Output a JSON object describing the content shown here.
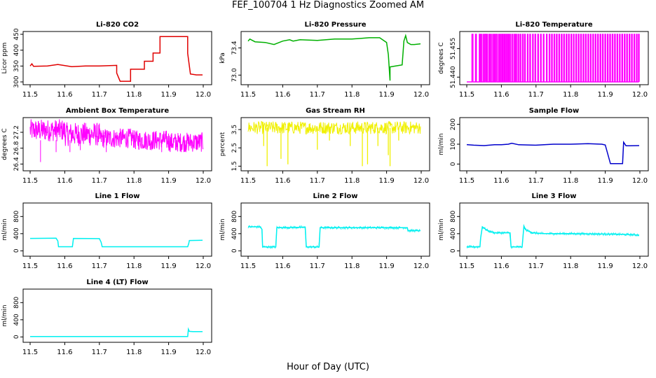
{
  "figure": {
    "title": "FEF_100704  1 Hz Diagnostics Zoomed AM",
    "xlabel": "Hour of Day (UTC)"
  },
  "chart_data": [
    {
      "type": "line",
      "title": "Li-820 CO2",
      "ylabel": "Licor ppm",
      "color": "#e00000",
      "xlim": [
        11.5,
        12.0
      ],
      "ylim": [
        300,
        450
      ],
      "xticks": [
        "11.5",
        "11.6",
        "11.7",
        "11.8",
        "11.9",
        "12.0"
      ],
      "yticks": [
        300,
        350,
        400,
        450
      ],
      "x": [
        11.5,
        11.505,
        11.51,
        11.55,
        11.58,
        11.62,
        11.66,
        11.7,
        11.75,
        11.75,
        11.76,
        11.79,
        11.79,
        11.83,
        11.83,
        11.855,
        11.855,
        11.875,
        11.875,
        11.955,
        11.955,
        11.963,
        11.98,
        11.998
      ],
      "y": [
        350,
        357,
        349,
        350,
        355,
        348,
        350,
        350,
        352,
        328,
        302,
        302,
        340,
        340,
        365,
        365,
        391,
        391,
        443,
        443,
        390,
        325,
        322,
        322
      ]
    },
    {
      "type": "line",
      "title": "Li-820 Pressure",
      "ylabel": "kPa",
      "color": "#00b000",
      "xlim": [
        11.5,
        12.0
      ],
      "ylim": [
        72.9,
        73.6
      ],
      "xticks": [
        "11.5",
        "11.6",
        "11.7",
        "11.8",
        "11.9",
        "12.0"
      ],
      "yticks": [
        "73.0",
        "73.4"
      ],
      "x": [
        11.5,
        11.505,
        11.52,
        11.55,
        11.575,
        11.6,
        11.62,
        11.63,
        11.65,
        11.7,
        11.75,
        11.8,
        11.85,
        11.88,
        11.9,
        11.905,
        11.91,
        11.91,
        11.92,
        11.945,
        11.95,
        11.955,
        11.96,
        11.97,
        11.98,
        11.998
      ],
      "y": [
        73.5,
        73.53,
        73.49,
        73.48,
        73.45,
        73.5,
        73.52,
        73.5,
        73.52,
        73.51,
        73.53,
        73.53,
        73.55,
        73.55,
        73.48,
        73.3,
        72.92,
        73.12,
        73.13,
        73.15,
        73.5,
        73.58,
        73.48,
        73.45,
        73.45,
        73.46
      ]
    },
    {
      "type": "line",
      "title": "Li-820 Temperature",
      "ylabel": "degrees C",
      "color": "#ff00ff",
      "xlim": [
        11.5,
        12.0
      ],
      "ylim": [
        51.4375,
        51.4625
      ],
      "xticks": [
        "11.5",
        "11.6",
        "11.7",
        "11.8",
        "11.9",
        "12.0"
      ],
      "yticks": [
        "51.440",
        "51.455"
      ],
      "low": 51.4375,
      "high": 51.4625,
      "toggle_x": [
        11.515,
        11.518,
        11.525,
        11.528,
        11.536,
        11.538,
        11.54,
        11.543,
        11.547,
        11.549,
        11.552,
        11.555,
        11.557,
        11.56,
        11.564,
        11.566,
        11.569,
        11.571,
        11.575,
        11.577,
        11.58,
        11.582,
        11.585,
        11.588,
        11.592,
        11.594,
        11.597,
        11.599,
        11.602,
        11.604,
        11.607,
        11.61,
        11.613,
        11.615,
        11.618,
        11.62,
        11.623,
        11.626,
        11.63,
        11.632,
        11.636,
        11.638,
        11.641,
        11.644,
        11.648,
        11.65,
        11.654,
        11.656,
        11.661,
        11.663,
        11.667,
        11.669,
        11.675,
        11.677,
        11.682,
        11.684,
        11.69,
        11.692,
        11.697,
        11.699,
        11.705,
        11.707,
        11.713,
        11.715,
        11.721,
        11.723,
        11.73,
        11.732,
        11.738,
        11.74,
        11.745,
        11.747,
        11.752,
        11.754,
        11.759,
        11.761,
        11.766,
        11.768,
        11.773,
        11.775,
        11.78,
        11.782,
        11.787,
        11.789,
        11.794,
        11.796,
        11.801,
        11.803,
        11.808,
        11.81,
        11.815,
        11.817,
        11.822,
        11.824,
        11.829,
        11.831,
        11.836,
        11.838,
        11.843,
        11.845,
        11.85,
        11.852,
        11.857,
        11.859,
        11.864,
        11.866,
        11.871,
        11.873,
        11.878,
        11.88,
        11.885,
        11.887,
        11.892,
        11.894,
        11.899,
        11.901,
        11.906,
        11.908,
        11.913,
        11.915,
        11.92,
        11.922,
        11.927,
        11.929,
        11.934,
        11.936,
        11.941,
        11.943,
        11.948,
        11.95,
        11.955,
        11.957,
        11.962,
        11.964,
        11.969,
        11.971,
        11.976,
        11.978,
        11.983,
        11.985,
        11.99,
        11.992,
        11.996,
        11.998
      ]
    },
    {
      "type": "line",
      "title": "Ambient Box Temperature",
      "ylabel": "degrees C",
      "color": "#ff00ff",
      "xlim": [
        11.5,
        12.0
      ],
      "ylim": [
        26.3,
        27.5
      ],
      "xticks": [
        "11.5",
        "11.6",
        "11.7",
        "11.8",
        "11.9",
        "12.0"
      ],
      "yticks": [
        "26.4",
        "26.8",
        "27.2"
      ],
      "segments": [
        [
          11.5,
          11.6,
          27.25,
          0.28
        ],
        [
          11.6,
          11.7,
          27.15,
          0.3
        ],
        [
          11.7,
          11.8,
          27.05,
          0.25
        ],
        [
          11.8,
          11.9,
          27.0,
          0.25
        ],
        [
          11.9,
          12.0,
          26.95,
          0.25
        ]
      ],
      "dips": [
        [
          11.53,
          26.45
        ],
        [
          11.575,
          26.7
        ],
        [
          11.615,
          26.7
        ],
        [
          11.645,
          26.75
        ],
        [
          11.72,
          26.7
        ],
        [
          11.85,
          26.75
        ],
        [
          11.88,
          26.7
        ],
        [
          11.92,
          26.75
        ],
        [
          11.95,
          26.7
        ]
      ]
    },
    {
      "type": "line",
      "title": "Gas Stream RH",
      "ylabel": "percent",
      "color": "#f0f000",
      "xlim": [
        11.5,
        12.0
      ],
      "ylim": [
        1.4,
        4.0
      ],
      "xticks": [
        "11.5",
        "11.6",
        "11.7",
        "11.8",
        "11.9",
        "12.0"
      ],
      "yticks": [
        "1.5",
        "2.5",
        "3.5"
      ],
      "base": 3.6,
      "noise": 0.35,
      "dips": [
        [
          11.545,
          2.6
        ],
        [
          11.555,
          1.5
        ],
        [
          11.595,
          1.9
        ],
        [
          11.615,
          1.6
        ],
        [
          11.7,
          2.4
        ],
        [
          11.735,
          2.9
        ],
        [
          11.795,
          2.6
        ],
        [
          11.83,
          1.5
        ],
        [
          11.845,
          1.6
        ],
        [
          11.875,
          2.6
        ],
        [
          11.905,
          2.1
        ],
        [
          11.91,
          1.5
        ],
        [
          11.935,
          2.9
        ]
      ]
    },
    {
      "type": "line",
      "title": "Sample Flow",
      "ylabel": "ml/min",
      "color": "#0000cc",
      "xlim": [
        11.5,
        12.0
      ],
      "ylim": [
        -20,
        220
      ],
      "xticks": [
        "11.5",
        "11.6",
        "11.7",
        "11.8",
        "11.9",
        "12.0"
      ],
      "yticks": [
        0,
        100,
        200
      ],
      "x": [
        11.5,
        11.52,
        11.55,
        11.58,
        11.6,
        11.62,
        11.63,
        11.65,
        11.7,
        11.75,
        11.8,
        11.85,
        11.89,
        11.9,
        11.915,
        11.95,
        11.953,
        11.96,
        11.97,
        11.998
      ],
      "y": [
        98,
        95,
        93,
        97,
        97,
        100,
        105,
        97,
        95,
        100,
        100,
        103,
        100,
        96,
        2,
        2,
        110,
        92,
        92,
        93
      ]
    },
    {
      "type": "line",
      "title": "Line 1 Flow",
      "ylabel": "ml/min",
      "color": "#00f0f0",
      "xlim": [
        11.5,
        12.0
      ],
      "ylim": [
        -60,
        1050
      ],
      "xticks": [
        "11.5",
        "11.6",
        "11.7",
        "11.8",
        "11.9",
        "12.0"
      ],
      "yticks": [
        0,
        400,
        800
      ],
      "x": [
        11.5,
        11.575,
        11.58,
        11.582,
        11.622,
        11.625,
        11.7,
        11.705,
        11.708,
        11.955,
        11.958,
        11.96,
        11.998
      ],
      "y": [
        290,
        295,
        230,
        95,
        95,
        290,
        285,
        200,
        95,
        95,
        170,
        240,
        245
      ]
    },
    {
      "type": "line",
      "title": "Line 2 Flow",
      "ylabel": "ml/min",
      "color": "#00f0f0",
      "xlim": [
        11.5,
        12.0
      ],
      "ylim": [
        -60,
        1050
      ],
      "xticks": [
        "11.5",
        "11.6",
        "11.7",
        "11.8",
        "11.9",
        "12.0"
      ],
      "yticks": [
        0,
        400,
        800
      ],
      "x": [
        11.5,
        11.535,
        11.54,
        11.542,
        11.58,
        11.583,
        11.665,
        11.668,
        11.705,
        11.708,
        11.96,
        11.962,
        11.998
      ],
      "y": [
        560,
        560,
        500,
        90,
        90,
        540,
        550,
        90,
        90,
        540,
        540,
        470,
        470
      ],
      "band": 35
    },
    {
      "type": "line",
      "title": "Line 3 Flow",
      "ylabel": "ml/min",
      "color": "#00f0f0",
      "xlim": [
        11.5,
        12.0
      ],
      "ylim": [
        -60,
        1050
      ],
      "xticks": [
        "11.5",
        "11.6",
        "11.7",
        "11.8",
        "11.9",
        "12.0"
      ],
      "yticks": [
        0,
        400,
        800
      ],
      "x": [
        11.5,
        11.538,
        11.54,
        11.545,
        11.56,
        11.58,
        11.625,
        11.628,
        11.66,
        11.665,
        11.67,
        11.69,
        11.72,
        11.8,
        11.9,
        11.96,
        11.998
      ],
      "y": [
        90,
        95,
        300,
        560,
        470,
        420,
        420,
        90,
        90,
        580,
        490,
        420,
        400,
        400,
        390,
        380,
        370
      ],
      "band": 35
    },
    {
      "type": "line",
      "title": "Line 4 (LT) Flow",
      "ylabel": "ml/min",
      "color": "#00f0f0",
      "xlim": [
        11.5,
        12.0
      ],
      "ylim": [
        -60,
        1050
      ],
      "xticks": [
        "11.5",
        "11.6",
        "11.7",
        "11.8",
        "11.9",
        "12.0"
      ],
      "yticks": [
        0,
        400,
        800
      ],
      "x": [
        11.5,
        11.7,
        11.955,
        11.957,
        11.96,
        11.97,
        11.998
      ],
      "y": [
        10,
        10,
        10,
        180,
        130,
        125,
        125
      ]
    }
  ]
}
